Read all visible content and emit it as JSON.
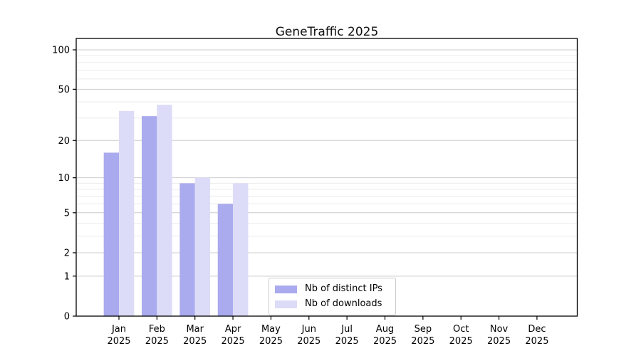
{
  "chart_data": {
    "type": "bar",
    "title": "GeneTraffic 2025",
    "categories": [
      "Jan\n2025",
      "Feb\n2025",
      "Mar\n2025",
      "Apr\n2025",
      "May\n2025",
      "Jun\n2025",
      "Jul\n2025",
      "Aug\n2025",
      "Sep\n2025",
      "Oct\n2025",
      "Nov\n2025",
      "Dec\n2025"
    ],
    "series": [
      {
        "name": "Nb of distinct IPs",
        "color": "#aaaaee",
        "values": [
          16,
          31,
          9,
          6,
          0,
          0,
          0,
          0,
          0,
          0,
          0,
          0
        ]
      },
      {
        "name": "Nb of downloads",
        "color": "#dcdcf8",
        "values": [
          34,
          38,
          10,
          9,
          0,
          0,
          0,
          0,
          0,
          0,
          0,
          0
        ]
      }
    ],
    "xlabel": "",
    "ylabel": "",
    "yscale": "log1p",
    "yticks": [
      0,
      1,
      2,
      5,
      10,
      20,
      50,
      100
    ],
    "yticks_minor": [
      3,
      4,
      6,
      7,
      8,
      9,
      30,
      40,
      60,
      70,
      80,
      90
    ],
    "ylim": [
      0,
      122
    ],
    "grid": "horizontal major+minor",
    "legend_position": "lower center",
    "colors": {
      "major_grid": "#cccccc",
      "minor_grid": "#ebebeb",
      "spine": "#000000",
      "tick_text": "#000000",
      "background": "#ffffff"
    }
  }
}
